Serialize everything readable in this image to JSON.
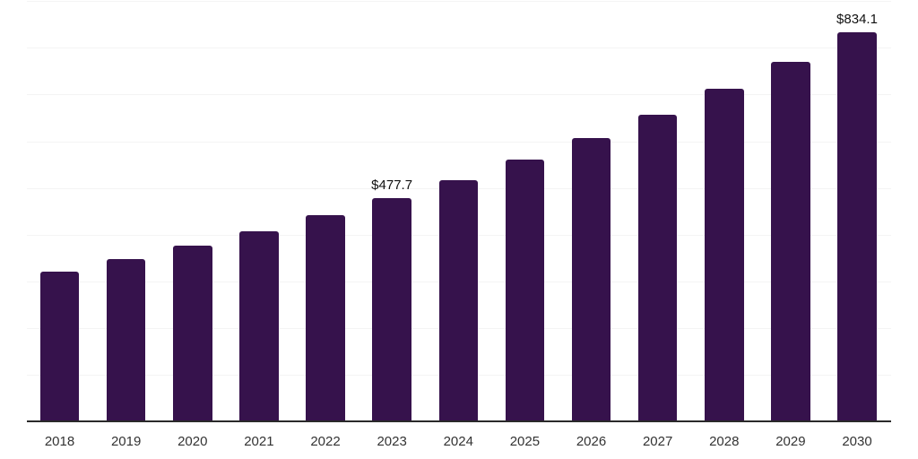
{
  "chart_data": {
    "type": "bar",
    "title": "",
    "xlabel": "",
    "ylabel": "",
    "categories": [
      "2018",
      "2019",
      "2020",
      "2021",
      "2022",
      "2023",
      "2024",
      "2025",
      "2026",
      "2027",
      "2028",
      "2029",
      "2030"
    ],
    "values": [
      320.7,
      347.3,
      376.1,
      407.3,
      441.1,
      477.7,
      517.3,
      560.2,
      606.6,
      656.9,
      711.4,
      770.4,
      834.1
    ],
    "data_labels": [
      "",
      "",
      "",
      "",
      "",
      "$477.7",
      "",
      "",
      "",
      "",
      "",
      "",
      "$834.1"
    ],
    "ylim": [
      0,
      900
    ],
    "gridline_step": 100,
    "grid": true,
    "y_tick_labels_visible": false,
    "legend": "none",
    "colors": {
      "bar": "#36124c",
      "axis_line": "#2a2a2a",
      "gridline": "#f4f4f4",
      "tick_label": "#333333",
      "data_label": "#111111",
      "background": "#ffffff"
    }
  }
}
